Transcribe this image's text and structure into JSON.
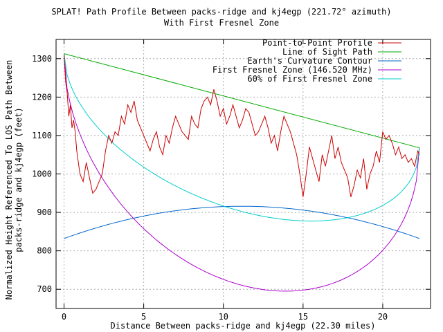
{
  "chart_data": {
    "type": "line",
    "title": "SPLAT! Path Profile Between packs-ridge and kj4egp (221.72° azimuth)",
    "subtitle": "With First Fresnel Zone",
    "xlabel": "Distance Between packs-ridge and kj4egp (22.30 miles)",
    "ylabel_line1": "Normalized Height Referenced To LOS Path Between",
    "ylabel_line2": "packs-ridge and kj4egp (feet)",
    "xlim": [
      -0.5,
      23
    ],
    "ylim": [
      650,
      1350
    ],
    "xticks": [
      0,
      5,
      10,
      15,
      20
    ],
    "yticks": [
      700,
      800,
      900,
      1000,
      1100,
      1200,
      1300
    ],
    "grid": true,
    "legend_position": "top-right",
    "series": [
      {
        "name": "Point-to-Point Profile",
        "color": "#cc0000",
        "x": [
          0,
          0.1,
          0.2,
          0.3,
          0.4,
          0.5,
          0.6,
          0.7,
          0.8,
          0.9,
          1.0,
          1.2,
          1.4,
          1.6,
          1.8,
          2.0,
          2.2,
          2.4,
          2.6,
          2.8,
          3.0,
          3.2,
          3.4,
          3.6,
          3.8,
          4.0,
          4.2,
          4.4,
          4.6,
          4.8,
          5.0,
          5.2,
          5.4,
          5.6,
          5.8,
          6.0,
          6.2,
          6.4,
          6.6,
          6.8,
          7.0,
          7.2,
          7.4,
          7.6,
          7.8,
          8.0,
          8.2,
          8.4,
          8.6,
          8.8,
          9.0,
          9.2,
          9.4,
          9.6,
          9.8,
          10.0,
          10.2,
          10.4,
          10.6,
          10.8,
          11.0,
          11.2,
          11.4,
          11.6,
          11.8,
          12.0,
          12.2,
          12.4,
          12.6,
          12.8,
          13.0,
          13.2,
          13.4,
          13.6,
          13.8,
          14.0,
          14.2,
          14.4,
          14.6,
          14.8,
          15.0,
          15.2,
          15.4,
          15.6,
          15.8,
          16.0,
          16.2,
          16.4,
          16.6,
          16.8,
          17.0,
          17.2,
          17.4,
          17.6,
          17.8,
          18.0,
          18.2,
          18.4,
          18.6,
          18.8,
          19.0,
          19.2,
          19.4,
          19.6,
          19.8,
          20.0,
          20.2,
          20.4,
          20.6,
          20.8,
          21.0,
          21.2,
          21.4,
          21.6,
          21.8,
          22.0,
          22.2,
          22.3
        ],
        "y": [
          1310,
          1240,
          1210,
          1150,
          1180,
          1120,
          1140,
          1110,
          1060,
          1030,
          1000,
          980,
          1030,
          990,
          950,
          960,
          980,
          1000,
          1060,
          1100,
          1080,
          1110,
          1100,
          1150,
          1130,
          1180,
          1160,
          1190,
          1140,
          1120,
          1100,
          1080,
          1060,
          1090,
          1110,
          1070,
          1050,
          1100,
          1080,
          1120,
          1150,
          1130,
          1110,
          1100,
          1090,
          1150,
          1130,
          1120,
          1170,
          1190,
          1200,
          1180,
          1220,
          1190,
          1150,
          1170,
          1130,
          1150,
          1180,
          1150,
          1120,
          1140,
          1170,
          1160,
          1130,
          1100,
          1110,
          1130,
          1150,
          1120,
          1080,
          1100,
          1060,
          1110,
          1150,
          1130,
          1110,
          1080,
          1050,
          1000,
          940,
          1000,
          1070,
          1040,
          1010,
          980,
          1050,
          1020,
          1060,
          1100,
          1040,
          1070,
          1030,
          1010,
          990,
          940,
          970,
          1010,
          990,
          1040,
          960,
          1000,
          1020,
          1060,
          1030,
          1110,
          1090,
          1100,
          1080,
          1050,
          1070,
          1040,
          1050,
          1030,
          1040,
          1020,
          1060,
          1050
        ]
      },
      {
        "name": "Line of Sight Path",
        "color": "#00aa00",
        "x": [
          0,
          22.3
        ],
        "y": [
          1313,
          1068
        ]
      },
      {
        "name": "Earth's Curvature Contour",
        "color": "#0066cc",
        "curve": "parabola",
        "x_end": 22.3,
        "y_ends": 832,
        "y_peak": 916
      },
      {
        "name": "First Fresnel Zone (146.520 MHz)",
        "color": "#aa00cc",
        "curve": "fresnel",
        "depth": 480
      },
      {
        "name": "60% of First Fresnel Zone",
        "color": "#00cccc",
        "curve": "fresnel",
        "depth": 288
      }
    ]
  }
}
